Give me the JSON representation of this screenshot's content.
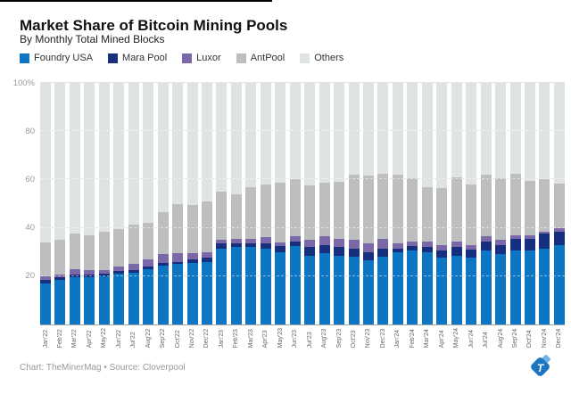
{
  "header": {
    "title": "Market Share of Bitcoin Mining Pools",
    "subtitle": "By Monthly Total Mined Blocks"
  },
  "footer": {
    "credit": "Chart: TheMinerMag • Source: Cloverpool"
  },
  "logo": {
    "letter": "T",
    "color": "#1b76c2",
    "accent_color": "#70b2e1"
  },
  "chart_data": {
    "type": "bar",
    "stacked": true,
    "unit": "percent",
    "ylim": [
      0,
      100
    ],
    "legend_position": "top",
    "grid": "horizontal",
    "yticks": [
      {
        "value": 100,
        "label": "100%"
      },
      {
        "value": 80,
        "label": "80"
      },
      {
        "value": 60,
        "label": "60"
      },
      {
        "value": 40,
        "label": "40"
      },
      {
        "value": 20,
        "label": "20"
      }
    ],
    "categories": [
      "Jan'22",
      "Feb'22",
      "Mar'22",
      "Apr'22",
      "May'22",
      "Jun'22",
      "Jul'22",
      "Aug'22",
      "Sep'22",
      "Oct'22",
      "Nov'22",
      "Dec'22",
      "Jan'23",
      "Feb'23",
      "Mar'23",
      "Apr'23",
      "May'23",
      "Jun'23",
      "Jul'23",
      "Aug'23",
      "Sep'23",
      "Oct'23",
      "Nov'23",
      "Dec'23",
      "Jan'24",
      "Feb'24",
      "Mar'24",
      "Apr'24",
      "May'24",
      "Jun'24",
      "Jul'24",
      "Aug'24",
      "Sep'24",
      "Oct'24",
      "Nov'24",
      "Dec'24"
    ],
    "series": [
      {
        "name": "Foundry USA",
        "color": "#0d76c4",
        "values": [
          17,
          18.5,
          19.5,
          19.5,
          20,
          21,
          21.5,
          23,
          24.5,
          25,
          25.5,
          26,
          31.5,
          32,
          32,
          31.5,
          30,
          32.5,
          28.5,
          29.5,
          28.5,
          28,
          26.5,
          28,
          30,
          30.5,
          30,
          27.5,
          28.5,
          27.5,
          30.5,
          29,
          30.5,
          30.5,
          31.5,
          33
        ]
      },
      {
        "name": "Mara Pool",
        "color": "#16307f",
        "values": [
          1.5,
          1,
          1,
          1,
          1,
          1,
          1,
          1,
          1,
          1,
          1.5,
          1.5,
          2,
          1.5,
          1.5,
          2,
          2.5,
          2,
          3.5,
          3.5,
          3.5,
          3.5,
          3.5,
          3.5,
          1.5,
          2,
          2,
          3,
          3.5,
          3.5,
          4,
          4,
          5,
          5,
          6,
          5.5
        ]
      },
      {
        "name": "Luxor",
        "color": "#7b68a8",
        "values": [
          1.5,
          1,
          2.5,
          2,
          1.5,
          2,
          2.5,
          3,
          3.5,
          3.5,
          2.5,
          2.5,
          1.5,
          2,
          2,
          2.5,
          1.5,
          2,
          3,
          3.5,
          3.5,
          3.5,
          3.5,
          4,
          2,
          2,
          2.5,
          2.5,
          2.5,
          2,
          2,
          2,
          1.5,
          1.5,
          1,
          1.5
        ]
      },
      {
        "name": "AntPool",
        "color": "#bdbebf",
        "values": [
          14,
          14.5,
          14.5,
          14.5,
          16,
          15.5,
          16.5,
          15,
          17.5,
          20.5,
          20,
          21,
          20,
          18.5,
          21.5,
          22,
          24.5,
          23.5,
          22.5,
          22,
          23.5,
          27,
          28,
          27,
          28.5,
          26,
          22.5,
          23.5,
          26.5,
          25,
          25.5,
          25.5,
          25.5,
          22.5,
          21.5,
          18.5
        ]
      },
      {
        "name": "Others",
        "color": "#dfe4e2",
        "values": [
          66,
          65,
          62.5,
          63,
          61.5,
          60.5,
          58.5,
          58,
          53.5,
          50,
          50.5,
          49,
          45,
          46,
          43,
          42,
          41.5,
          40,
          42.5,
          41.5,
          41,
          38,
          38.5,
          37.5,
          38,
          39.5,
          43,
          43.5,
          39,
          42,
          38,
          39.5,
          37.5,
          40.5,
          40,
          41.5
        ]
      }
    ]
  }
}
